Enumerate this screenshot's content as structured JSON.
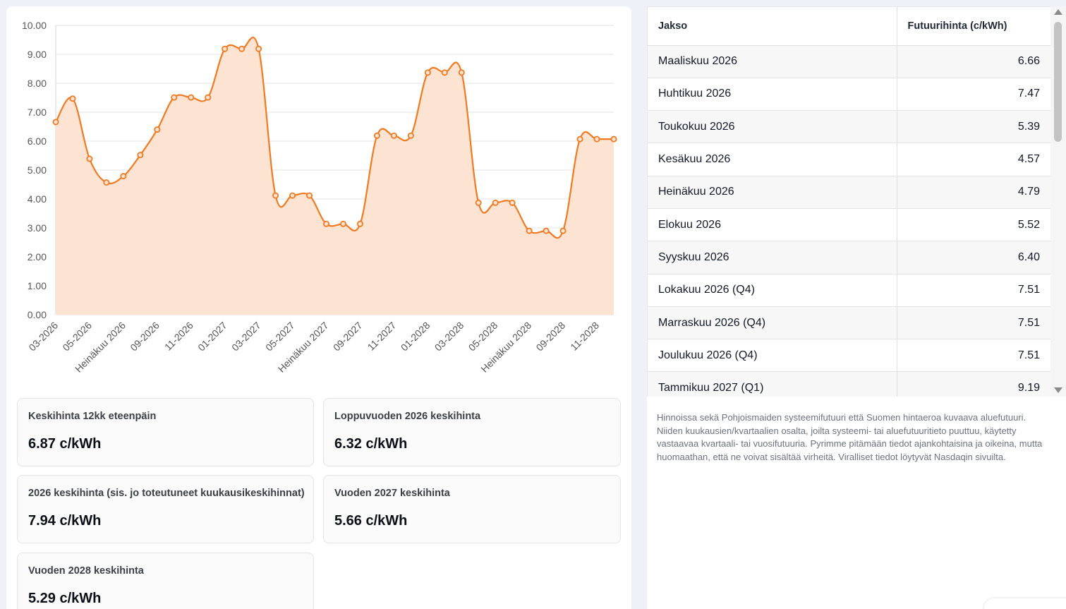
{
  "chart_data": {
    "type": "area",
    "color": "#f07a22",
    "fill_color": "#fde3d1",
    "ylim": [
      0,
      10
    ],
    "y_ticks": [
      "0.00",
      "1.00",
      "2.00",
      "3.00",
      "4.00",
      "5.00",
      "6.00",
      "7.00",
      "8.00",
      "9.00",
      "10.00"
    ],
    "x_tick_labels": [
      "03-2026",
      "05-2026",
      "Heinäkuu 2026",
      "09-2026",
      "11-2026",
      "01-2027",
      "03-2027",
      "05-2027",
      "Heinäkuu 2027",
      "09-2027",
      "11-2027",
      "01-2028",
      "03-2028",
      "05-2028",
      "Heinäkuu 2028",
      "09-2028",
      "11-2028"
    ],
    "values": [
      6.66,
      7.47,
      5.39,
      4.57,
      4.79,
      5.52,
      6.4,
      7.51,
      7.51,
      7.51,
      9.19,
      9.19,
      9.19,
      4.12,
      4.12,
      4.12,
      3.14,
      3.14,
      3.14,
      6.19,
      6.19,
      6.19,
      8.37,
      8.37,
      8.37,
      3.87,
      3.87,
      3.87,
      2.9,
      2.9,
      2.9,
      6.07,
      6.07,
      6.07
    ]
  },
  "stats": [
    {
      "label": "Keskihinta 12kk eteenpäin",
      "value": "6.87 c/kWh"
    },
    {
      "label": "Loppuvuoden 2026 keskihinta",
      "value": "6.32 c/kWh"
    },
    {
      "label": "2026 keskihinta (sis. jo toteutuneet kuukausikeskihinnat)",
      "value": "7.94 c/kWh"
    },
    {
      "label": "Vuoden 2027 keskihinta",
      "value": "5.66 c/kWh"
    },
    {
      "label": "Vuoden 2028 keskihinta",
      "value": "5.29 c/kWh"
    }
  ],
  "table": {
    "headers": {
      "period": "Jakso",
      "price": "Futuurihinta (c/kWh)"
    },
    "rows": [
      {
        "period": "Maaliskuu 2026",
        "price": "6.66"
      },
      {
        "period": "Huhtikuu 2026",
        "price": "7.47"
      },
      {
        "period": "Toukokuu 2026",
        "price": "5.39"
      },
      {
        "period": "Kesäkuu 2026",
        "price": "4.57"
      },
      {
        "period": "Heinäkuu 2026",
        "price": "4.79"
      },
      {
        "period": "Elokuu 2026",
        "price": "5.52"
      },
      {
        "period": "Syyskuu 2026",
        "price": "6.40"
      },
      {
        "period": "Lokakuu 2026 (Q4)",
        "price": "7.51"
      },
      {
        "period": "Marraskuu 2026 (Q4)",
        "price": "7.51"
      },
      {
        "period": "Joulukuu 2026 (Q4)",
        "price": "7.51"
      },
      {
        "period": "Tammikuu 2027 (Q1)",
        "price": "9.19"
      }
    ]
  },
  "note": "Hinnoissa sekä Pohjoismaiden systeemifutuuri että Suomen hintaeroa kuvaava aluefutuuri. Niiden kuukausien/kvartaalien osalta, joilta systeemi- tai aluefutuuritieto puuttuu, käytetty vastaavaa kvartaali- tai vuosifutuuria. Pyrimme pitämään tiedot ajankohtaisina ja oikeina, mutta huomaathan, että ne voivat sisältää virheitä. Viralliset tiedot löytyvät Nasdaqin sivuilta."
}
